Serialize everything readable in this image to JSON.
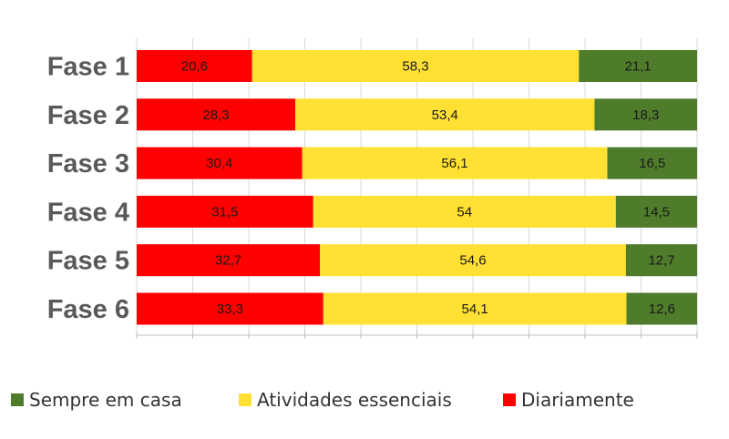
{
  "chart_data": {
    "type": "bar",
    "orientation": "horizontal",
    "stacked": true,
    "normalized": true,
    "categories": [
      "Fase 1",
      "Fase 2",
      "Fase 3",
      "Fase 4",
      "Fase 5",
      "Fase 6"
    ],
    "series": [
      {
        "name": "Diariamente",
        "color": "#ff0000",
        "values": [
          20.6,
          28.3,
          30.4,
          31.5,
          32.7,
          33.3
        ],
        "labels": [
          "20,6",
          "28,3",
          "30,4",
          "31,5",
          "32,7",
          "33,3"
        ]
      },
      {
        "name": "Atividades essenciais",
        "color": "#ffe033",
        "values": [
          58.3,
          53.4,
          56.1,
          54,
          54.6,
          54.1
        ],
        "labels": [
          "58,3",
          "53,4",
          "56,1",
          "54",
          "54,6",
          "54,1"
        ]
      },
      {
        "name": "Sempre em casa",
        "color": "#4f7c2a",
        "values": [
          21.1,
          18.3,
          16.5,
          14.5,
          12.7,
          12.6
        ],
        "labels": [
          "21,1",
          "18,3",
          "16,5",
          "14,5",
          "12,7",
          "12,6"
        ]
      }
    ],
    "legend_order": [
      "Sempre em casa",
      "Atividades essenciais",
      "Diariamente"
    ],
    "legend_position": "bottom",
    "grid": true,
    "xlim": [
      0,
      100
    ],
    "title": "",
    "xlabel": "",
    "ylabel": ""
  }
}
